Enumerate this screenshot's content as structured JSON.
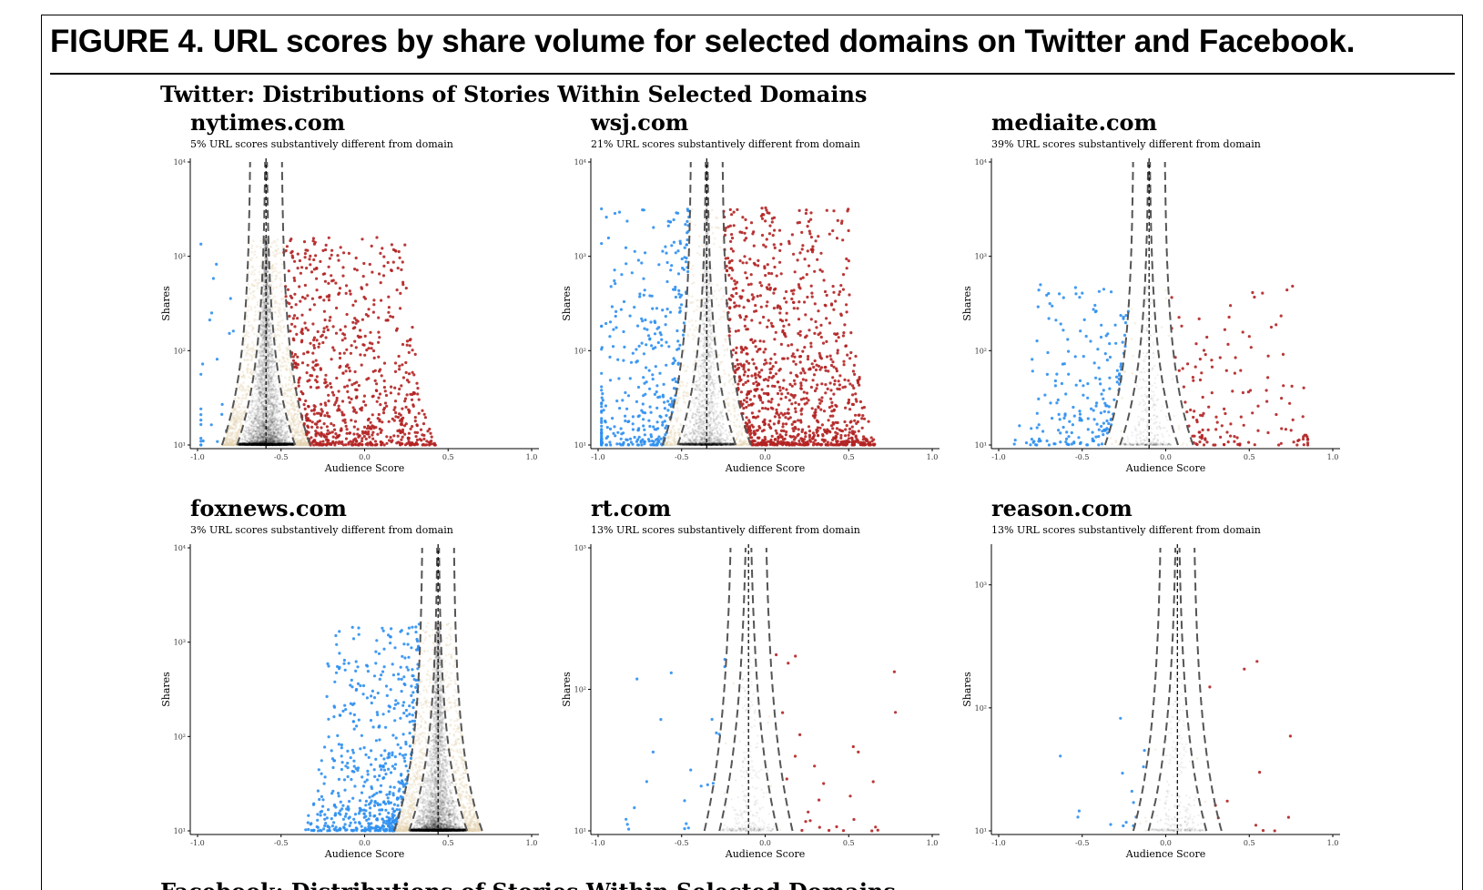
{
  "figure": {
    "title": "FIGURE 4. URL scores by share volume for selected domains on Twitter and Facebook."
  },
  "section": {
    "title": "Twitter: Distributions of Stories Within Selected Domains",
    "next_title": "Facebook: Distributions of Stories Within Selected Domains"
  },
  "chart_data": [
    {
      "type": "scatter",
      "title": "nytimes.com",
      "subtitle": "5% URL scores substantively different from domain",
      "xlabel": "Audience Score",
      "ylabel": "Shares",
      "xlim": [
        -1.0,
        1.0
      ],
      "xticks": [
        "-1.0",
        "-0.5",
        "0.0",
        "0.5",
        "1.0"
      ],
      "yscale": "log",
      "ylim": [
        10,
        10000
      ],
      "yticks": [
        "10¹",
        "10²",
        "10³",
        "10⁴"
      ],
      "domain_score": -0.59,
      "percent_different": 5,
      "max_shares": 1600,
      "counts": {
        "right_red": 780,
        "left_blue": 25,
        "in_band": 1000,
        "inside": 4200,
        "floor": 1300
      },
      "colors": {
        "left": "#2e8ff0",
        "right": "#b22222",
        "band": "#e6d3b3",
        "inside": "#000000"
      }
    },
    {
      "type": "scatter",
      "title": "wsj.com",
      "subtitle": "21% URL scores substantively different from domain",
      "xlabel": "Audience Score",
      "ylabel": "Shares",
      "xlim": [
        -1.0,
        1.0
      ],
      "xticks": [
        "-1.0",
        "-0.5",
        "0.0",
        "0.5",
        "1.0"
      ],
      "yscale": "log",
      "ylim": [
        10,
        10000
      ],
      "yticks": [
        "10¹",
        "10²",
        "10³",
        "10⁴"
      ],
      "domain_score": -0.35,
      "percent_different": 21,
      "max_shares": 3300,
      "counts": {
        "right_red": 1050,
        "left_blue": 380,
        "in_band": 380,
        "inside": 1700,
        "floor": 500
      },
      "colors": {
        "left": "#2e8ff0",
        "right": "#b22222",
        "band": "#e6d3b3",
        "inside": "#000000"
      }
    },
    {
      "type": "scatter",
      "title": "mediaite.com",
      "subtitle": "39% URL scores substantively different from domain",
      "xlabel": "Audience Score",
      "ylabel": "Shares",
      "xlim": [
        -1.0,
        1.0
      ],
      "xticks": [
        "-1.0",
        "-0.5",
        "0.0",
        "0.5",
        "1.0"
      ],
      "yscale": "log",
      "ylim": [
        10,
        10000
      ],
      "yticks": [
        "10¹",
        "10²",
        "10³",
        "10⁴"
      ],
      "domain_score": -0.1,
      "percent_different": 39,
      "max_shares": 500,
      "counts": {
        "right_red": 140,
        "left_blue": 200,
        "in_band": 30,
        "inside": 330,
        "floor": 60
      },
      "colors": {
        "left": "#2e8ff0",
        "right": "#b22222",
        "band": "#e6d3b3",
        "inside": "#000000"
      }
    },
    {
      "type": "scatter",
      "title": "foxnews.com",
      "subtitle": "3% URL scores substantively different from domain",
      "xlabel": "Audience Score",
      "ylabel": "Shares",
      "xlim": [
        -1.0,
        1.0
      ],
      "xticks": [
        "-1.0",
        "-0.5",
        "0.0",
        "0.5",
        "1.0"
      ],
      "yscale": "log",
      "ylim": [
        10,
        10000
      ],
      "yticks": [
        "10¹",
        "10²",
        "10³",
        "10⁴"
      ],
      "domain_score": 0.44,
      "percent_different": 3,
      "max_shares": 1600,
      "counts": {
        "right_red": 0,
        "left_blue": 560,
        "in_band": 900,
        "inside": 4000,
        "floor": 1400
      },
      "colors": {
        "left": "#2e8ff0",
        "right": "#b22222",
        "band": "#e6d3b3",
        "inside": "#000000"
      }
    },
    {
      "type": "scatter",
      "title": "rt.com",
      "subtitle": "13% URL scores substantively different from domain",
      "xlabel": "Audience Score",
      "ylabel": "Shares",
      "xlim": [
        -1.0,
        1.0
      ],
      "xticks": [
        "-1.0",
        "-0.5",
        "0.0",
        "0.5",
        "1.0"
      ],
      "yscale": "log",
      "ylim": [
        10,
        1000
      ],
      "yticks": [
        "10¹",
        "10²",
        "10³"
      ],
      "domain_score": -0.1,
      "percent_different": 13,
      "max_shares": 220,
      "counts": {
        "right_red": 28,
        "left_blue": 22,
        "in_band": 10,
        "inside": 260,
        "floor": 40
      },
      "colors": {
        "left": "#2e8ff0",
        "right": "#b22222",
        "band": "#e6d3b3",
        "inside": "#000000"
      }
    },
    {
      "type": "scatter",
      "title": "reason.com",
      "subtitle": "13% URL scores substantively different from domain",
      "xlabel": "Audience Score",
      "ylabel": "Shares",
      "xlim": [
        -1.0,
        1.0
      ],
      "xticks": [
        "-1.0",
        "-0.5",
        "0.0",
        "0.5",
        "1.0"
      ],
      "yscale": "log",
      "ylim": [
        10,
        2000
      ],
      "yticks": [
        "10¹",
        "10²",
        "10³"
      ],
      "domain_score": 0.07,
      "percent_different": 13,
      "max_shares": 240,
      "counts": {
        "right_red": 12,
        "left_blue": 14,
        "in_band": 10,
        "inside": 240,
        "floor": 40
      },
      "colors": {
        "left": "#2e8ff0",
        "right": "#b22222",
        "band": "#e6d3b3",
        "inside": "#000000"
      }
    }
  ]
}
